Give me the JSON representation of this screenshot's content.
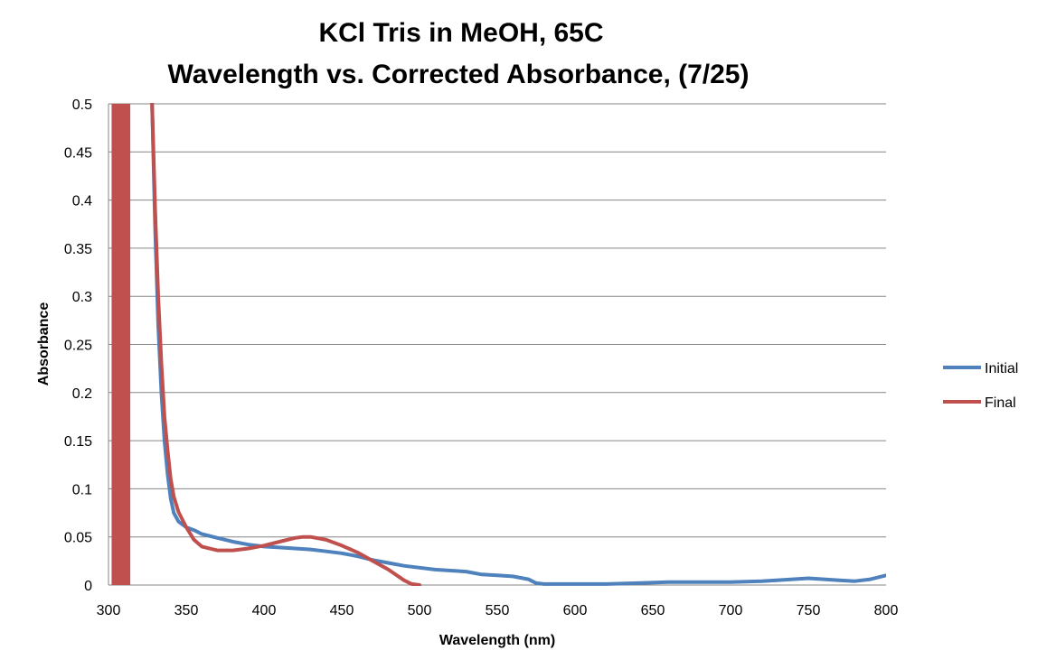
{
  "chart_data": {
    "type": "line",
    "title": [
      "KCl Tris in MeOH, 65C",
      "Wavelength vs. Corrected Absorbance, (7/25)"
    ],
    "xlabel": "Wavelength (nm)",
    "ylabel": "Absorbance",
    "xlim": [
      300,
      800
    ],
    "ylim": [
      0,
      0.5
    ],
    "x_ticks": [
      "300",
      "350",
      "400",
      "450",
      "500",
      "550",
      "600",
      "650",
      "700",
      "750",
      "800"
    ],
    "y_ticks": [
      "0",
      "0.05",
      "0.1",
      "0.15",
      "0.2",
      "0.25",
      "0.3",
      "0.35",
      "0.4",
      "0.45",
      "0.5"
    ],
    "grid": "horizontal",
    "legend_position": "right",
    "series": [
      {
        "name": "Initial",
        "color": "#4F81BD",
        "points": [
          [
            328,
            0.5
          ],
          [
            330,
            0.37
          ],
          [
            332,
            0.27
          ],
          [
            334,
            0.2
          ],
          [
            336,
            0.15
          ],
          [
            338,
            0.115
          ],
          [
            340,
            0.09
          ],
          [
            342,
            0.075
          ],
          [
            345,
            0.066
          ],
          [
            350,
            0.06
          ],
          [
            355,
            0.057
          ],
          [
            360,
            0.053
          ],
          [
            370,
            0.049
          ],
          [
            380,
            0.045
          ],
          [
            390,
            0.042
          ],
          [
            400,
            0.04
          ],
          [
            410,
            0.039
          ],
          [
            420,
            0.038
          ],
          [
            430,
            0.037
          ],
          [
            440,
            0.035
          ],
          [
            450,
            0.033
          ],
          [
            460,
            0.03
          ],
          [
            470,
            0.026
          ],
          [
            480,
            0.023
          ],
          [
            490,
            0.02
          ],
          [
            500,
            0.018
          ],
          [
            510,
            0.016
          ],
          [
            520,
            0.015
          ],
          [
            530,
            0.014
          ],
          [
            540,
            0.011
          ],
          [
            550,
            0.01
          ],
          [
            560,
            0.009
          ],
          [
            570,
            0.006
          ],
          [
            575,
            0.002
          ],
          [
            580,
            0.001
          ],
          [
            600,
            0.001
          ],
          [
            620,
            0.001
          ],
          [
            640,
            0.002
          ],
          [
            660,
            0.003
          ],
          [
            680,
            0.003
          ],
          [
            700,
            0.003
          ],
          [
            720,
            0.004
          ],
          [
            740,
            0.006
          ],
          [
            750,
            0.007
          ],
          [
            760,
            0.006
          ],
          [
            770,
            0.005
          ],
          [
            780,
            0.004
          ],
          [
            790,
            0.006
          ],
          [
            800,
            0.01
          ]
        ]
      },
      {
        "name": "Final",
        "color": "#C0504D",
        "points": [
          [
            328,
            0.5
          ],
          [
            330,
            0.39
          ],
          [
            332,
            0.3
          ],
          [
            334,
            0.23
          ],
          [
            336,
            0.175
          ],
          [
            338,
            0.14
          ],
          [
            340,
            0.11
          ],
          [
            342,
            0.092
          ],
          [
            345,
            0.076
          ],
          [
            350,
            0.06
          ],
          [
            355,
            0.047
          ],
          [
            360,
            0.04
          ],
          [
            370,
            0.036
          ],
          [
            380,
            0.036
          ],
          [
            390,
            0.038
          ],
          [
            400,
            0.041
          ],
          [
            410,
            0.045
          ],
          [
            420,
            0.049
          ],
          [
            425,
            0.05
          ],
          [
            430,
            0.05
          ],
          [
            440,
            0.047
          ],
          [
            450,
            0.041
          ],
          [
            460,
            0.034
          ],
          [
            470,
            0.025
          ],
          [
            480,
            0.016
          ],
          [
            490,
            0.005
          ],
          [
            495,
            0.001
          ],
          [
            500,
            0.0
          ]
        ]
      },
      {
        "name": "",
        "color": "#C0504D",
        "type": "band",
        "x_range": [
          302,
          314
        ],
        "y_range": [
          0,
          0.5
        ]
      }
    ]
  }
}
